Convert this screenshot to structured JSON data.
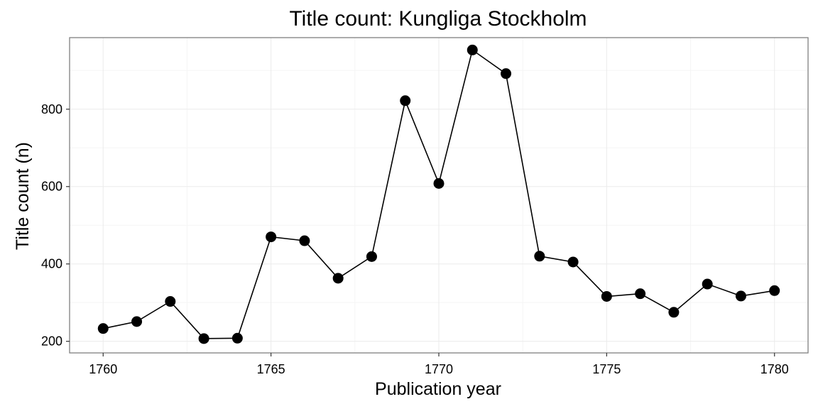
{
  "chart_data": {
    "type": "line",
    "title": "Title count: Kungliga Stockholm",
    "xlabel": "Publication year",
    "ylabel": "Title count (n)",
    "x": [
      1760,
      1761,
      1762,
      1763,
      1764,
      1765,
      1766,
      1767,
      1768,
      1769,
      1770,
      1771,
      1772,
      1773,
      1774,
      1775,
      1776,
      1777,
      1778,
      1779,
      1780
    ],
    "series": [
      {
        "values": [
          233,
          251,
          303,
          207,
          208,
          470,
          460,
          363,
          419,
          822,
          608,
          953,
          892,
          420,
          405,
          316,
          323,
          275,
          348,
          317,
          331
        ],
        "color": "#000000",
        "markers": true
      }
    ],
    "xlim": [
      1759,
      1781
    ],
    "ylim": [
      170,
      985
    ],
    "xticks": [
      1760,
      1765,
      1770,
      1775,
      1780
    ],
    "yticks": [
      200,
      400,
      600,
      800
    ],
    "grid": true,
    "legend": "none"
  }
}
